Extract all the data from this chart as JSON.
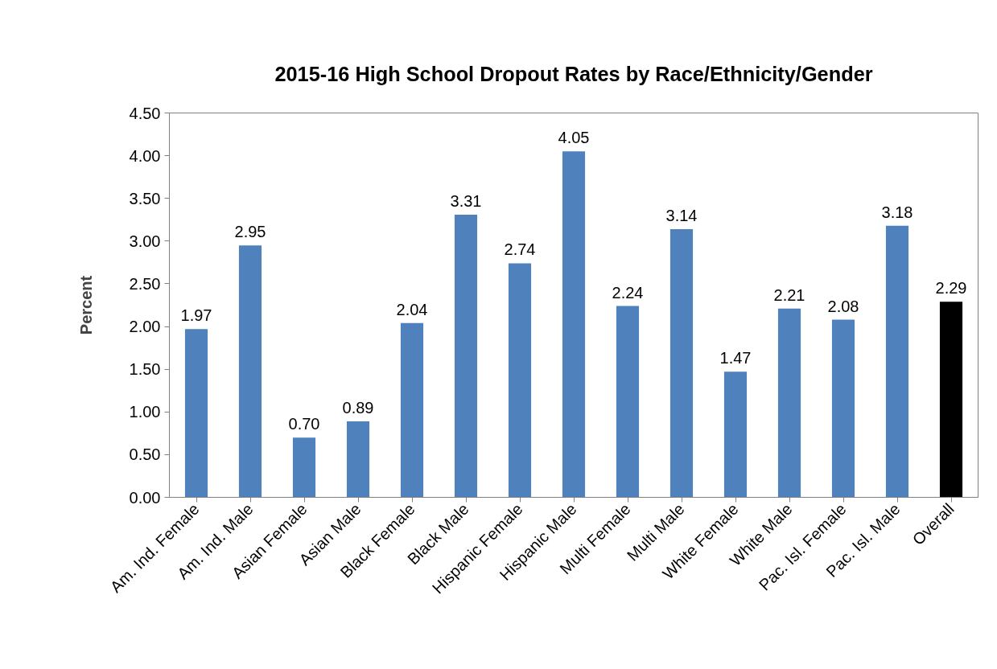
{
  "chart_data": {
    "type": "bar",
    "title": "2015-16 High School Dropout Rates by Race/Ethnicity/Gender",
    "ylabel": "Percent",
    "categories": [
      "Am. Ind. Female",
      "Am. Ind. Male",
      "Asian Female",
      "Asian Male",
      "Black Female",
      "Black Male",
      "Hispanic Female",
      "Hispanic Male",
      "Multi Female",
      "Multi Male",
      "White Female",
      "White Male",
      "Pac. Isl. Female",
      "Pac. Isl. Male",
      "Overall"
    ],
    "values": [
      1.97,
      2.95,
      0.7,
      0.89,
      2.04,
      3.31,
      2.74,
      4.05,
      2.24,
      3.14,
      1.47,
      2.21,
      2.08,
      3.18,
      2.29
    ],
    "colors": [
      "#4f81bd",
      "#4f81bd",
      "#4f81bd",
      "#4f81bd",
      "#4f81bd",
      "#4f81bd",
      "#4f81bd",
      "#4f81bd",
      "#4f81bd",
      "#4f81bd",
      "#4f81bd",
      "#4f81bd",
      "#4f81bd",
      "#4f81bd",
      "#000000"
    ],
    "value_labels": [
      "1.97",
      "2.95",
      "0.70",
      "0.89",
      "2.04",
      "3.31",
      "2.74",
      "4.05",
      "2.24",
      "3.14",
      "1.47",
      "2.21",
      "2.08",
      "3.18",
      "2.29"
    ],
    "ylim": [
      0,
      4.5
    ],
    "yticks": [
      {
        "value": 0,
        "label": "0.00"
      },
      {
        "value": 0.5,
        "label": "0.50"
      },
      {
        "value": 1,
        "label": "1.00"
      },
      {
        "value": 1.5,
        "label": "1.50"
      },
      {
        "value": 2,
        "label": "2.00"
      },
      {
        "value": 2.5,
        "label": "2.50"
      },
      {
        "value": 3,
        "label": "3.00"
      },
      {
        "value": 3.5,
        "label": "3.50"
      },
      {
        "value": 4,
        "label": "4.00"
      },
      {
        "value": 4.5,
        "label": "4.50"
      }
    ],
    "grid": false
  }
}
